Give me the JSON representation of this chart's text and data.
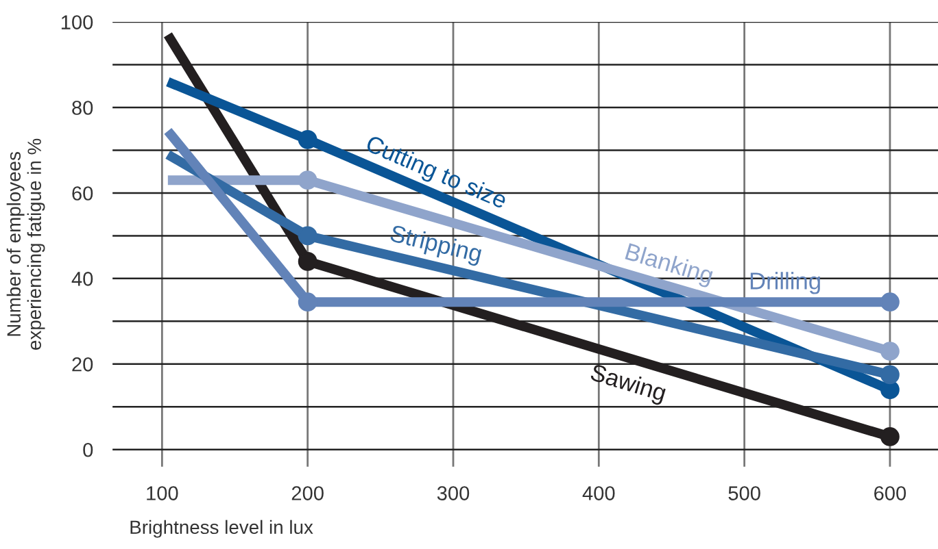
{
  "chart_data": {
    "type": "line",
    "xlabel": "Brightness level in lux",
    "ylabel": "Number of employees\nexperiencing fatigue in %",
    "xlim": [
      66,
      633
    ],
    "ylim": [
      -4,
      100
    ],
    "xticks": [
      100,
      200,
      300,
      400,
      500,
      600
    ],
    "yticks": [
      0,
      {
        "value": 10,
        "label": null
      },
      20,
      {
        "value": 30,
        "label": null
      },
      40,
      {
        "value": 50,
        "label": null
      },
      60,
      {
        "value": 70,
        "label": null
      },
      80,
      {
        "value": 90,
        "label": null
      },
      100
    ],
    "grid": true,
    "legend": false,
    "marker": "circle",
    "line_style": "solid",
    "series": [
      {
        "name": "Sawing",
        "color": "#231f20",
        "x": [
          104,
          200,
          600
        ],
        "values": [
          97,
          44,
          3
        ]
      },
      {
        "name": "Cutting to size",
        "color": "#0a5596",
        "x": [
          104,
          200,
          600
        ],
        "values": [
          86,
          72.5,
          14
        ]
      },
      {
        "name": "Blanking",
        "color": "#8fa4cb",
        "x": [
          104,
          200,
          600
        ],
        "values": [
          63,
          63,
          23
        ]
      },
      {
        "name": "Stripping",
        "color": "#336ba4",
        "x": [
          104,
          200,
          600
        ],
        "values": [
          69,
          50,
          17.5
        ]
      },
      {
        "name": "Drilling",
        "color": "#6283b8",
        "x": [
          104,
          200,
          600
        ],
        "values": [
          74.5,
          34.5,
          34.5
        ]
      }
    ]
  }
}
